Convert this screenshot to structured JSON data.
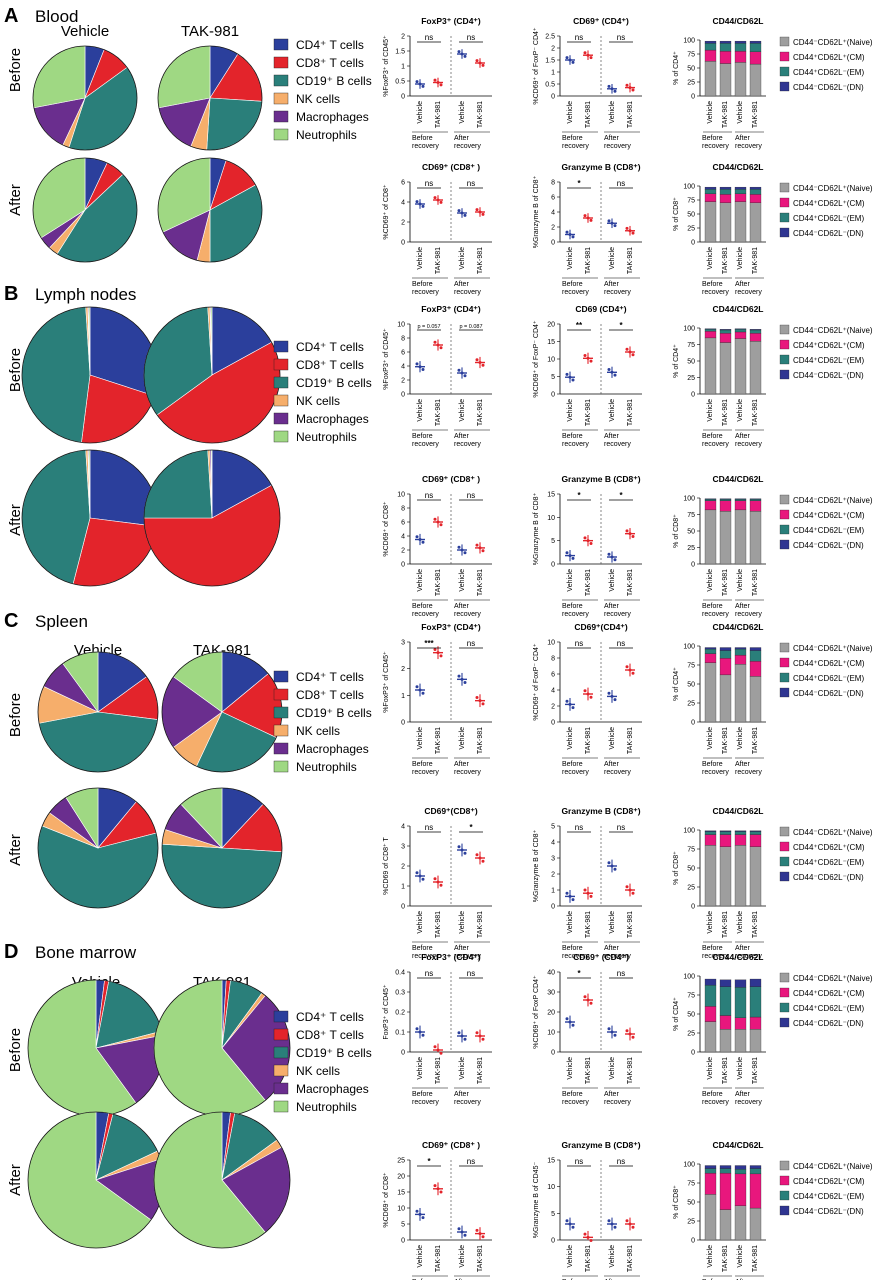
{
  "legend_items": [
    {
      "label": "CD4⁺ T cells",
      "color": "#2b3f9c"
    },
    {
      "label": "CD8⁺ T cells",
      "color": "#e3242b"
    },
    {
      "label": "CD19⁺ B cells",
      "color": "#2a7f7a"
    },
    {
      "label": "NK cells",
      "color": "#f6ae6b"
    },
    {
      "label": "Macrophages",
      "color": "#6a2e8e"
    },
    {
      "label": "Neutrophils",
      "color": "#9fd883"
    }
  ],
  "cd_legend": [
    {
      "label": "CD44⁻CD62L⁺(Naive)",
      "color": "#9e9e9e"
    },
    {
      "label": "CD44⁺CD62L⁺(CM)",
      "color": "#e8177d"
    },
    {
      "label": "CD44⁺CD62L⁻(EM)",
      "color": "#2a7f7a"
    },
    {
      "label": "CD44⁻CD62L⁻(DN)",
      "color": "#2f3591"
    }
  ],
  "colors": {
    "vehicle": "#2b3f9c",
    "tak": "#e3242b"
  },
  "x_ticks": [
    "Vehicle",
    "TAK-981",
    "Vehicle",
    "TAK-981"
  ],
  "group_labels": [
    "Before recovery",
    "After recovery"
  ],
  "col_vehicle": "Vehicle",
  "col_tak": "TAK-981",
  "row_before": "Before",
  "row_after": "After",
  "chart_data": [
    {
      "panel": "A",
      "tissue": "Blood",
      "pies": {
        "vehicle_before": [
          6,
          9,
          40,
          2,
          15,
          28
        ],
        "tak_before": [
          9,
          17,
          25,
          5,
          16,
          28
        ],
        "vehicle_after": [
          7,
          6,
          46,
          3,
          4,
          34
        ],
        "tak_after": [
          5,
          12,
          33,
          4,
          14,
          32
        ]
      },
      "rows": [
        {
          "dots": [
            {
              "title": "FoxP3⁺ (CD4⁺)",
              "ylabel": "%FoxP3⁺ of CD45⁺",
              "ylim": [
                0,
                2
              ],
              "ticks": [
                0,
                0.5,
                1,
                1.5,
                2
              ],
              "means": [
                0.4,
                0.45,
                1.4,
                1.1
              ],
              "sig": [
                "ns",
                "ns"
              ]
            },
            {
              "title": "CD69⁺ (CD4⁺)",
              "ylabel": "%CD69⁺ of FoxP⁻ CD4⁺",
              "ylim": [
                0,
                2.5
              ],
              "ticks": [
                0,
                0.5,
                1,
                1.5,
                2,
                2.5
              ],
              "means": [
                1.5,
                1.7,
                0.3,
                0.35
              ],
              "sig": [
                "ns",
                "ns"
              ]
            }
          ],
          "stack": {
            "title": "CD44/CD62L",
            "ylabel": "% of CD4⁺",
            "values": [
              [
                62,
                20,
                12,
                4
              ],
              [
                58,
                22,
                14,
                4
              ],
              [
                60,
                20,
                14,
                4
              ],
              [
                57,
                22,
                15,
                4
              ]
            ]
          }
        },
        {
          "dots": [
            {
              "title": "CD69⁺ (CD8⁺ )",
              "ylabel": "%CD69⁺ of CD8⁺",
              "ylim": [
                0,
                6
              ],
              "ticks": [
                0,
                2,
                4,
                6
              ],
              "means": [
                3.8,
                4.2,
                2.9,
                3.0
              ],
              "sig": [
                "ns",
                "ns"
              ]
            },
            {
              "title": "Granzyme B (CD8⁺)",
              "ylabel": "%Granzyme B of CD8⁺",
              "ylim": [
                0,
                8
              ],
              "ticks": [
                0,
                2,
                4,
                6,
                8
              ],
              "means": [
                1.0,
                3.2,
                2.5,
                1.5
              ],
              "sig": [
                "*",
                "ns"
              ]
            }
          ],
          "stack": {
            "title": "CD44/CD62L",
            "ylabel": "% of CD8⁺",
            "values": [
              [
                72,
                14,
                8,
                4
              ],
              [
                70,
                15,
                9,
                4
              ],
              [
                72,
                14,
                8,
                4
              ],
              [
                70,
                15,
                9,
                4
              ]
            ]
          }
        }
      ]
    },
    {
      "panel": "B",
      "tissue": "Lymph nodes",
      "pies": {
        "vehicle_before": [
          30,
          22,
          47,
          0.5,
          0.2,
          0.3
        ],
        "tak_before": [
          17,
          48,
          34,
          0.5,
          0.2,
          0.3
        ],
        "vehicle_after": [
          27,
          27,
          45,
          0.5,
          0.2,
          0.3
        ],
        "tak_after": [
          17,
          58,
          24,
          0.5,
          0.3,
          0.2
        ]
      },
      "rows": [
        {
          "dots": [
            {
              "title": "FoxP3⁺ (CD4⁺)",
              "ylabel": "%FoxP3⁺ of CD45⁺",
              "ylim": [
                0,
                10
              ],
              "ticks": [
                0,
                2,
                4,
                6,
                8,
                10
              ],
              "means": [
                3.9,
                7.0,
                3.0,
                4.5
              ],
              "sig": [
                "p = 0.057",
                "p = 0.087"
              ]
            },
            {
              "title": "CD69 (CD4⁺)",
              "ylabel": "%CD69⁺ of FoxP⁻ CD4⁺",
              "ylim": [
                0,
                20
              ],
              "ticks": [
                0,
                5,
                10,
                15,
                20
              ],
              "means": [
                4.8,
                10.2,
                6.2,
                12.0
              ],
              "sig": [
                "**",
                "*"
              ]
            }
          ],
          "stack": {
            "title": "CD44/CD62L",
            "ylabel": "% of CD4⁺",
            "values": [
              [
                85,
                10,
                3,
                1
              ],
              [
                78,
                14,
                5,
                1
              ],
              [
                84,
                10,
                4,
                1
              ],
              [
                80,
                12,
                5,
                1
              ]
            ]
          }
        },
        {
          "dots": [
            {
              "title": "CD69⁺ (CD8⁺ )",
              "ylabel": "%CD69⁺ of CD8⁺",
              "ylim": [
                0,
                10
              ],
              "ticks": [
                0,
                2,
                4,
                6,
                8,
                10
              ],
              "means": [
                3.5,
                6.0,
                2.0,
                2.3
              ],
              "sig": [
                "ns",
                "ns"
              ]
            },
            {
              "title": "Granzyme B (CD8⁺)",
              "ylabel": "%Granzyme B of CD8⁺",
              "ylim": [
                0,
                15
              ],
              "ticks": [
                0,
                5,
                10,
                15
              ],
              "means": [
                1.8,
                5.0,
                1.5,
                6.5
              ],
              "sig": [
                "*",
                "*"
              ]
            }
          ],
          "stack": {
            "title": "CD44/CD62L",
            "ylabel": "% of CD8⁺",
            "values": [
              [
                82,
                14,
                2,
                1
              ],
              [
                80,
                16,
                2,
                1
              ],
              [
                82,
                14,
                2,
                1
              ],
              [
                80,
                16,
                2,
                1
              ]
            ]
          }
        }
      ]
    },
    {
      "panel": "C",
      "tissue": "Spleen",
      "pies": {
        "vehicle_before": [
          15,
          12,
          45,
          10,
          8,
          10
        ],
        "tak_before": [
          14,
          18,
          25,
          8,
          20,
          15
        ],
        "vehicle_after": [
          11,
          10,
          60,
          4,
          6,
          9
        ],
        "tak_after": [
          12,
          14,
          50,
          4,
          8,
          12
        ]
      },
      "rows": [
        {
          "dots": [
            {
              "title": "FoxP3⁺ (CD4⁺)",
              "ylabel": "%FoxP3⁺ of CD45⁺",
              "ylim": [
                0,
                3
              ],
              "ticks": [
                0,
                1,
                2,
                3
              ],
              "means": [
                1.2,
                2.6,
                1.6,
                0.8
              ],
              "sig": [
                "***",
                "ns"
              ]
            },
            {
              "title": "CD69⁺(CD4⁺)",
              "ylabel": "%CD69⁺ of FoxP⁻ CD4⁺",
              "ylim": [
                0,
                10
              ],
              "ticks": [
                0,
                2,
                4,
                6,
                8,
                10
              ],
              "means": [
                2.2,
                3.5,
                3.2,
                6.5
              ],
              "sig": [
                "ns",
                "ns"
              ]
            }
          ],
          "stack": {
            "title": "CD44/CD62L",
            "ylabel": "% of CD4⁺",
            "values": [
              [
                78,
                12,
                6,
                2
              ],
              [
                62,
                22,
                10,
                4
              ],
              [
                76,
                12,
                8,
                2
              ],
              [
                60,
                20,
                14,
                4
              ]
            ]
          }
        },
        {
          "dots": [
            {
              "title": "CD69⁺(CD8⁺)",
              "ylabel": "%CD69 of CD8⁺ T",
              "ylim": [
                0,
                4
              ],
              "ticks": [
                0,
                1,
                2,
                3,
                4
              ],
              "means": [
                1.5,
                1.2,
                2.8,
                2.4
              ],
              "sig": [
                "ns",
                "*"
              ]
            },
            {
              "title": "Granzyme B (CD8⁺)",
              "ylabel": "%Granzyme B of CD8⁺",
              "ylim": [
                0,
                5
              ],
              "ticks": [
                0,
                1,
                2,
                3,
                4,
                5
              ],
              "means": [
                0.6,
                0.8,
                2.5,
                1.0
              ],
              "sig": [
                "ns",
                "ns"
              ]
            }
          ],
          "stack": {
            "title": "CD44/CD62L",
            "ylabel": "% of CD8⁺",
            "values": [
              [
                80,
                14,
                4,
                1
              ],
              [
                78,
                16,
                4,
                1
              ],
              [
                80,
                14,
                4,
                1
              ],
              [
                78,
                16,
                4,
                1
              ]
            ]
          }
        }
      ]
    },
    {
      "panel": "D",
      "tissue": "Bone marrow",
      "pies": {
        "vehicle_before": [
          2,
          1,
          18,
          1,
          18,
          60
        ],
        "tak_before": [
          1,
          1,
          8,
          1,
          28,
          61
        ],
        "vehicle_after": [
          3,
          1,
          14,
          2,
          15,
          65
        ],
        "tak_after": [
          2,
          1,
          12,
          2,
          22,
          61
        ]
      },
      "rows": [
        {
          "dots": [
            {
              "title": "FoxP3⁺ (CD4⁺)",
              "ylabel": "FoxP3⁺ of CD45⁺",
              "ylim": [
                0,
                0.4
              ],
              "ticks": [
                0,
                0.1,
                0.2,
                0.3,
                0.4
              ],
              "means": [
                0.1,
                0.01,
                0.08,
                0.08
              ],
              "sig": [
                "ns",
                "ns"
              ]
            },
            {
              "title": "CD69⁺ (CD4⁺)",
              "ylabel": "%CD69⁺ of FoxP CD4⁺",
              "ylim": [
                0,
                40
              ],
              "ticks": [
                0,
                10,
                20,
                30,
                40
              ],
              "means": [
                15,
                26,
                10,
                9
              ],
              "sig": [
                "*",
                "ns"
              ]
            }
          ],
          "stack": {
            "title": "CD44/CD62L",
            "ylabel": "% of CD4⁺",
            "values": [
              [
                40,
                20,
                28,
                8
              ],
              [
                30,
                18,
                38,
                9
              ],
              [
                30,
                15,
                40,
                10
              ],
              [
                30,
                16,
                40,
                10
              ]
            ]
          }
        },
        {
          "dots": [
            {
              "title": "CD69⁺ (CD8⁺ )",
              "ylabel": "%CD69⁺ of CD8⁺",
              "ylim": [
                0,
                25
              ],
              "ticks": [
                0,
                5,
                10,
                15,
                20,
                25
              ],
              "means": [
                8,
                16,
                2.5,
                2
              ],
              "sig": [
                "*",
                "ns"
              ]
            },
            {
              "title": "Granzyme B (CD8⁺)",
              "ylabel": "%Granzyme B of CD45⁻",
              "ylim": [
                0,
                15
              ],
              "ticks": [
                0,
                5,
                10,
                15
              ],
              "means": [
                3,
                0.5,
                3,
                3
              ],
              "sig": [
                "ns",
                "ns"
              ]
            }
          ],
          "stack": {
            "title": "CD44/CD62L",
            "ylabel": "% of CD8⁺",
            "values": [
              [
                60,
                28,
                6,
                4
              ],
              [
                40,
                48,
                6,
                4
              ],
              [
                45,
                42,
                6,
                5
              ],
              [
                42,
                45,
                7,
                4
              ]
            ]
          }
        }
      ]
    }
  ]
}
